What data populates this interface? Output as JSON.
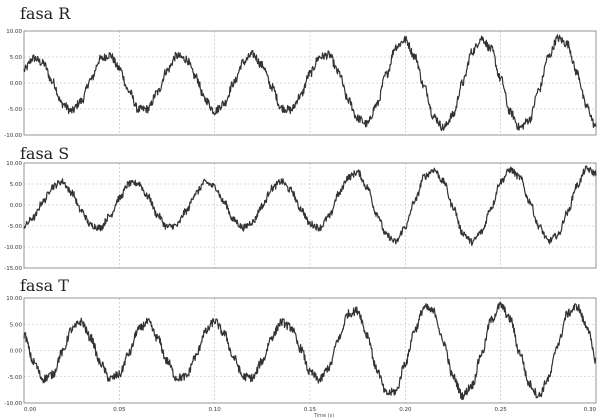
{
  "chart_data": [
    {
      "type": "line",
      "title": "fasa R",
      "xlim": [
        0,
        0.3
      ],
      "ylim": [
        -10,
        10
      ],
      "yticks": [
        "10.00",
        "5.00",
        "0.00",
        "-5.00",
        "-10.00"
      ],
      "xticks": [
        "0.00",
        "0.05",
        "0.10",
        "0.15",
        "0.20",
        "0.25",
        "0.30"
      ],
      "grid": true,
      "series": [
        {
          "color": "#333333",
          "x": [
            0,
            0.005,
            0.01,
            0.015,
            0.02,
            0.025,
            0.03,
            0.035,
            0.04,
            0.045,
            0.05,
            0.055,
            0.06,
            0.065,
            0.07,
            0.075,
            0.08,
            0.085,
            0.09,
            0.095,
            0.1,
            0.105,
            0.11,
            0.115,
            0.12,
            0.125,
            0.13,
            0.135,
            0.14,
            0.145,
            0.15,
            0.155,
            0.16,
            0.165,
            0.17,
            0.175,
            0.18,
            0.185,
            0.19,
            0.195,
            0.2,
            0.205,
            0.21,
            0.215,
            0.22,
            0.225,
            0.23,
            0.235,
            0.24,
            0.245,
            0.25,
            0.255,
            0.26,
            0.265,
            0.27,
            0.275,
            0.28,
            0.285,
            0.29,
            0.295,
            0.3
          ],
          "y": [
            2.5,
            4.8,
            3.8,
            0.2,
            -4.0,
            -5.4,
            -3.5,
            0.6,
            4.6,
            5.4,
            2.8,
            -1.6,
            -5.1,
            -5.0,
            -1.8,
            2.4,
            5.2,
            4.6,
            1.2,
            -3.2,
            -5.4,
            -3.9,
            0.0,
            4.0,
            5.5,
            3.4,
            -0.8,
            -4.8,
            -5.2,
            -2.5,
            1.8,
            5.0,
            5.4,
            2.0,
            -3.3,
            -6.8,
            -7.9,
            -4.2,
            1.6,
            7.0,
            8.3,
            5.1,
            -0.8,
            -6.5,
            -8.6,
            -6.2,
            0.0,
            6.0,
            8.6,
            6.5,
            0.8,
            -5.6,
            -8.6,
            -7.1,
            -1.4,
            5.0,
            8.6,
            7.5,
            2.0,
            -4.5,
            -8.5
          ]
        }
      ]
    },
    {
      "type": "line",
      "title": "fasa S",
      "xlim": [
        0,
        0.3
      ],
      "ylim": [
        -15,
        10
      ],
      "yticks": [
        "10.00",
        "5.00",
        "0.00",
        "-5.00",
        "-10.00",
        "-15.00"
      ],
      "xticks": [
        "0.00",
        "0.05",
        "0.10",
        "0.15",
        "0.20",
        "0.25",
        "0.30"
      ],
      "grid": true,
      "series": [
        {
          "color": "#333333",
          "x": [
            0,
            0.005,
            0.01,
            0.015,
            0.02,
            0.025,
            0.03,
            0.035,
            0.04,
            0.045,
            0.05,
            0.055,
            0.06,
            0.065,
            0.07,
            0.075,
            0.08,
            0.085,
            0.09,
            0.095,
            0.1,
            0.105,
            0.11,
            0.115,
            0.12,
            0.125,
            0.13,
            0.135,
            0.14,
            0.145,
            0.15,
            0.155,
            0.16,
            0.165,
            0.17,
            0.175,
            0.18,
            0.185,
            0.19,
            0.195,
            0.2,
            0.205,
            0.21,
            0.215,
            0.22,
            0.225,
            0.23,
            0.235,
            0.24,
            0.245,
            0.25,
            0.255,
            0.26,
            0.265,
            0.27,
            0.275,
            0.28,
            0.285,
            0.29,
            0.295,
            0.3
          ],
          "y": [
            -5.0,
            -3.0,
            0.8,
            4.4,
            5.6,
            3.0,
            -1.4,
            -4.8,
            -5.4,
            -2.6,
            1.6,
            5.0,
            5.2,
            2.0,
            -2.4,
            -5.2,
            -4.9,
            -1.5,
            2.8,
            5.4,
            4.4,
            0.6,
            -3.6,
            -5.4,
            -4.0,
            -0.2,
            4.0,
            5.6,
            3.5,
            -0.8,
            -4.5,
            -5.4,
            -2.8,
            2.6,
            6.6,
            7.8,
            4.2,
            -2.0,
            -7.2,
            -8.8,
            -5.2,
            1.0,
            6.8,
            8.4,
            5.6,
            -0.4,
            -6.6,
            -8.8,
            -6.4,
            -0.6,
            5.6,
            8.4,
            6.6,
            1.0,
            -5.0,
            -8.6,
            -7.2,
            -1.8,
            4.6,
            8.6,
            7.5
          ]
        }
      ]
    },
    {
      "type": "line",
      "title": "fasa T",
      "xlim": [
        0,
        0.3
      ],
      "ylim": [
        -10,
        10
      ],
      "yticks": [
        "10.00",
        "5.00",
        "0.00",
        "-5.00",
        "-10.00"
      ],
      "xticks": [
        "0.00",
        "0.05",
        "0.10",
        "0.15",
        "0.20",
        "0.25",
        "0.30"
      ],
      "xlabel": "Time (s)",
      "grid": true,
      "series": [
        {
          "color": "#333333",
          "x": [
            0,
            0.005,
            0.01,
            0.015,
            0.02,
            0.025,
            0.03,
            0.035,
            0.04,
            0.045,
            0.05,
            0.055,
            0.06,
            0.065,
            0.07,
            0.075,
            0.08,
            0.085,
            0.09,
            0.095,
            0.1,
            0.105,
            0.11,
            0.115,
            0.12,
            0.125,
            0.13,
            0.135,
            0.14,
            0.145,
            0.15,
            0.155,
            0.16,
            0.165,
            0.17,
            0.175,
            0.18,
            0.185,
            0.19,
            0.195,
            0.2,
            0.205,
            0.21,
            0.215,
            0.22,
            0.225,
            0.23,
            0.235,
            0.24,
            0.245,
            0.25,
            0.255,
            0.26,
            0.265,
            0.27,
            0.275,
            0.28,
            0.285,
            0.29,
            0.295,
            0.3
          ],
          "y": [
            3.0,
            -2.2,
            -5.4,
            -4.6,
            -0.4,
            4.0,
            5.5,
            2.4,
            -2.4,
            -5.4,
            -4.6,
            -0.6,
            4.0,
            5.4,
            2.4,
            -2.0,
            -5.2,
            -5.0,
            -1.2,
            3.5,
            5.6,
            3.2,
            -1.4,
            -5.0,
            -5.2,
            -2.0,
            2.6,
            5.4,
            4.4,
            0.4,
            -4.2,
            -5.6,
            -3.2,
            2.2,
            7.0,
            7.6,
            3.0,
            -3.6,
            -8.2,
            -7.8,
            -2.4,
            4.0,
            8.2,
            7.4,
            1.6,
            -5.0,
            -8.6,
            -6.6,
            -0.6,
            5.8,
            8.6,
            6.0,
            -0.4,
            -6.4,
            -8.6,
            -5.4,
            1.2,
            7.0,
            8.4,
            4.8,
            -1.8
          ]
        }
      ]
    }
  ]
}
